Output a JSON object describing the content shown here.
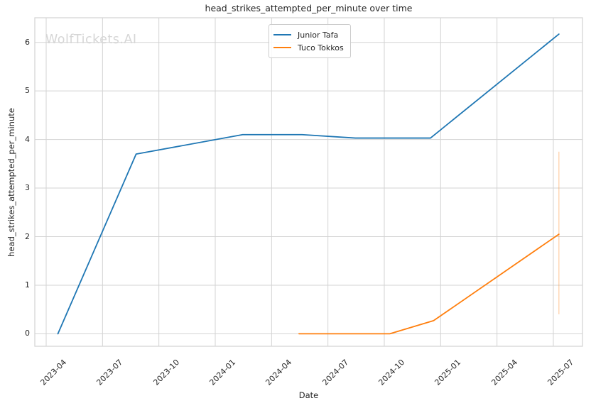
{
  "watermark": {
    "text": "WolfTickets.AI",
    "color": "#d6d6d6"
  },
  "colors": {
    "background": "#ffffff",
    "grid": "#d3d3d3",
    "plot_border": "#d3d3d3",
    "text": "#262626",
    "series_blue": "#1f77b4",
    "series_orange": "#ff7f0e"
  },
  "chart_data": {
    "type": "line",
    "title": "head_strikes_attempted_per_minute over time",
    "xlabel": "Date",
    "ylabel": "head_strikes_attempted_per_minute",
    "grid": true,
    "legend_position": "top-center",
    "x_tick_labels": [
      "2023-04",
      "2023-07",
      "2023-10",
      "2024-01",
      "2024-04",
      "2024-07",
      "2024-10",
      "2025-01",
      "2025-04",
      "2025-07"
    ],
    "y_tick_labels": [
      "0",
      "1",
      "2",
      "3",
      "4",
      "5",
      "6"
    ],
    "ylim": [
      -0.26,
      6.48
    ],
    "xlim": [
      "2023-03-14",
      "2025-08-17"
    ],
    "series": [
      {
        "name": "Junior Tafa",
        "color": "#1f77b4",
        "points": [
          {
            "date": "2023-04-20",
            "value": 0.0
          },
          {
            "date": "2023-08-25",
            "value": 3.7
          },
          {
            "date": "2024-02-15",
            "value": 4.1
          },
          {
            "date": "2024-05-20",
            "value": 4.1
          },
          {
            "date": "2024-08-15",
            "value": 4.03
          },
          {
            "date": "2024-12-15",
            "value": 4.03
          },
          {
            "date": "2025-07-10",
            "value": 6.17
          }
        ]
      },
      {
        "name": "Tuco Tokkos",
        "color": "#ff7f0e",
        "points": [
          {
            "date": "2024-05-15",
            "value": 0.0
          },
          {
            "date": "2024-10-10",
            "value": 0.0
          },
          {
            "date": "2024-12-20",
            "value": 0.27
          },
          {
            "date": "2025-07-10",
            "value": 2.05
          }
        ],
        "error_bar": {
          "date": "2025-07-10",
          "low": 0.4,
          "high": 3.75
        }
      }
    ]
  }
}
